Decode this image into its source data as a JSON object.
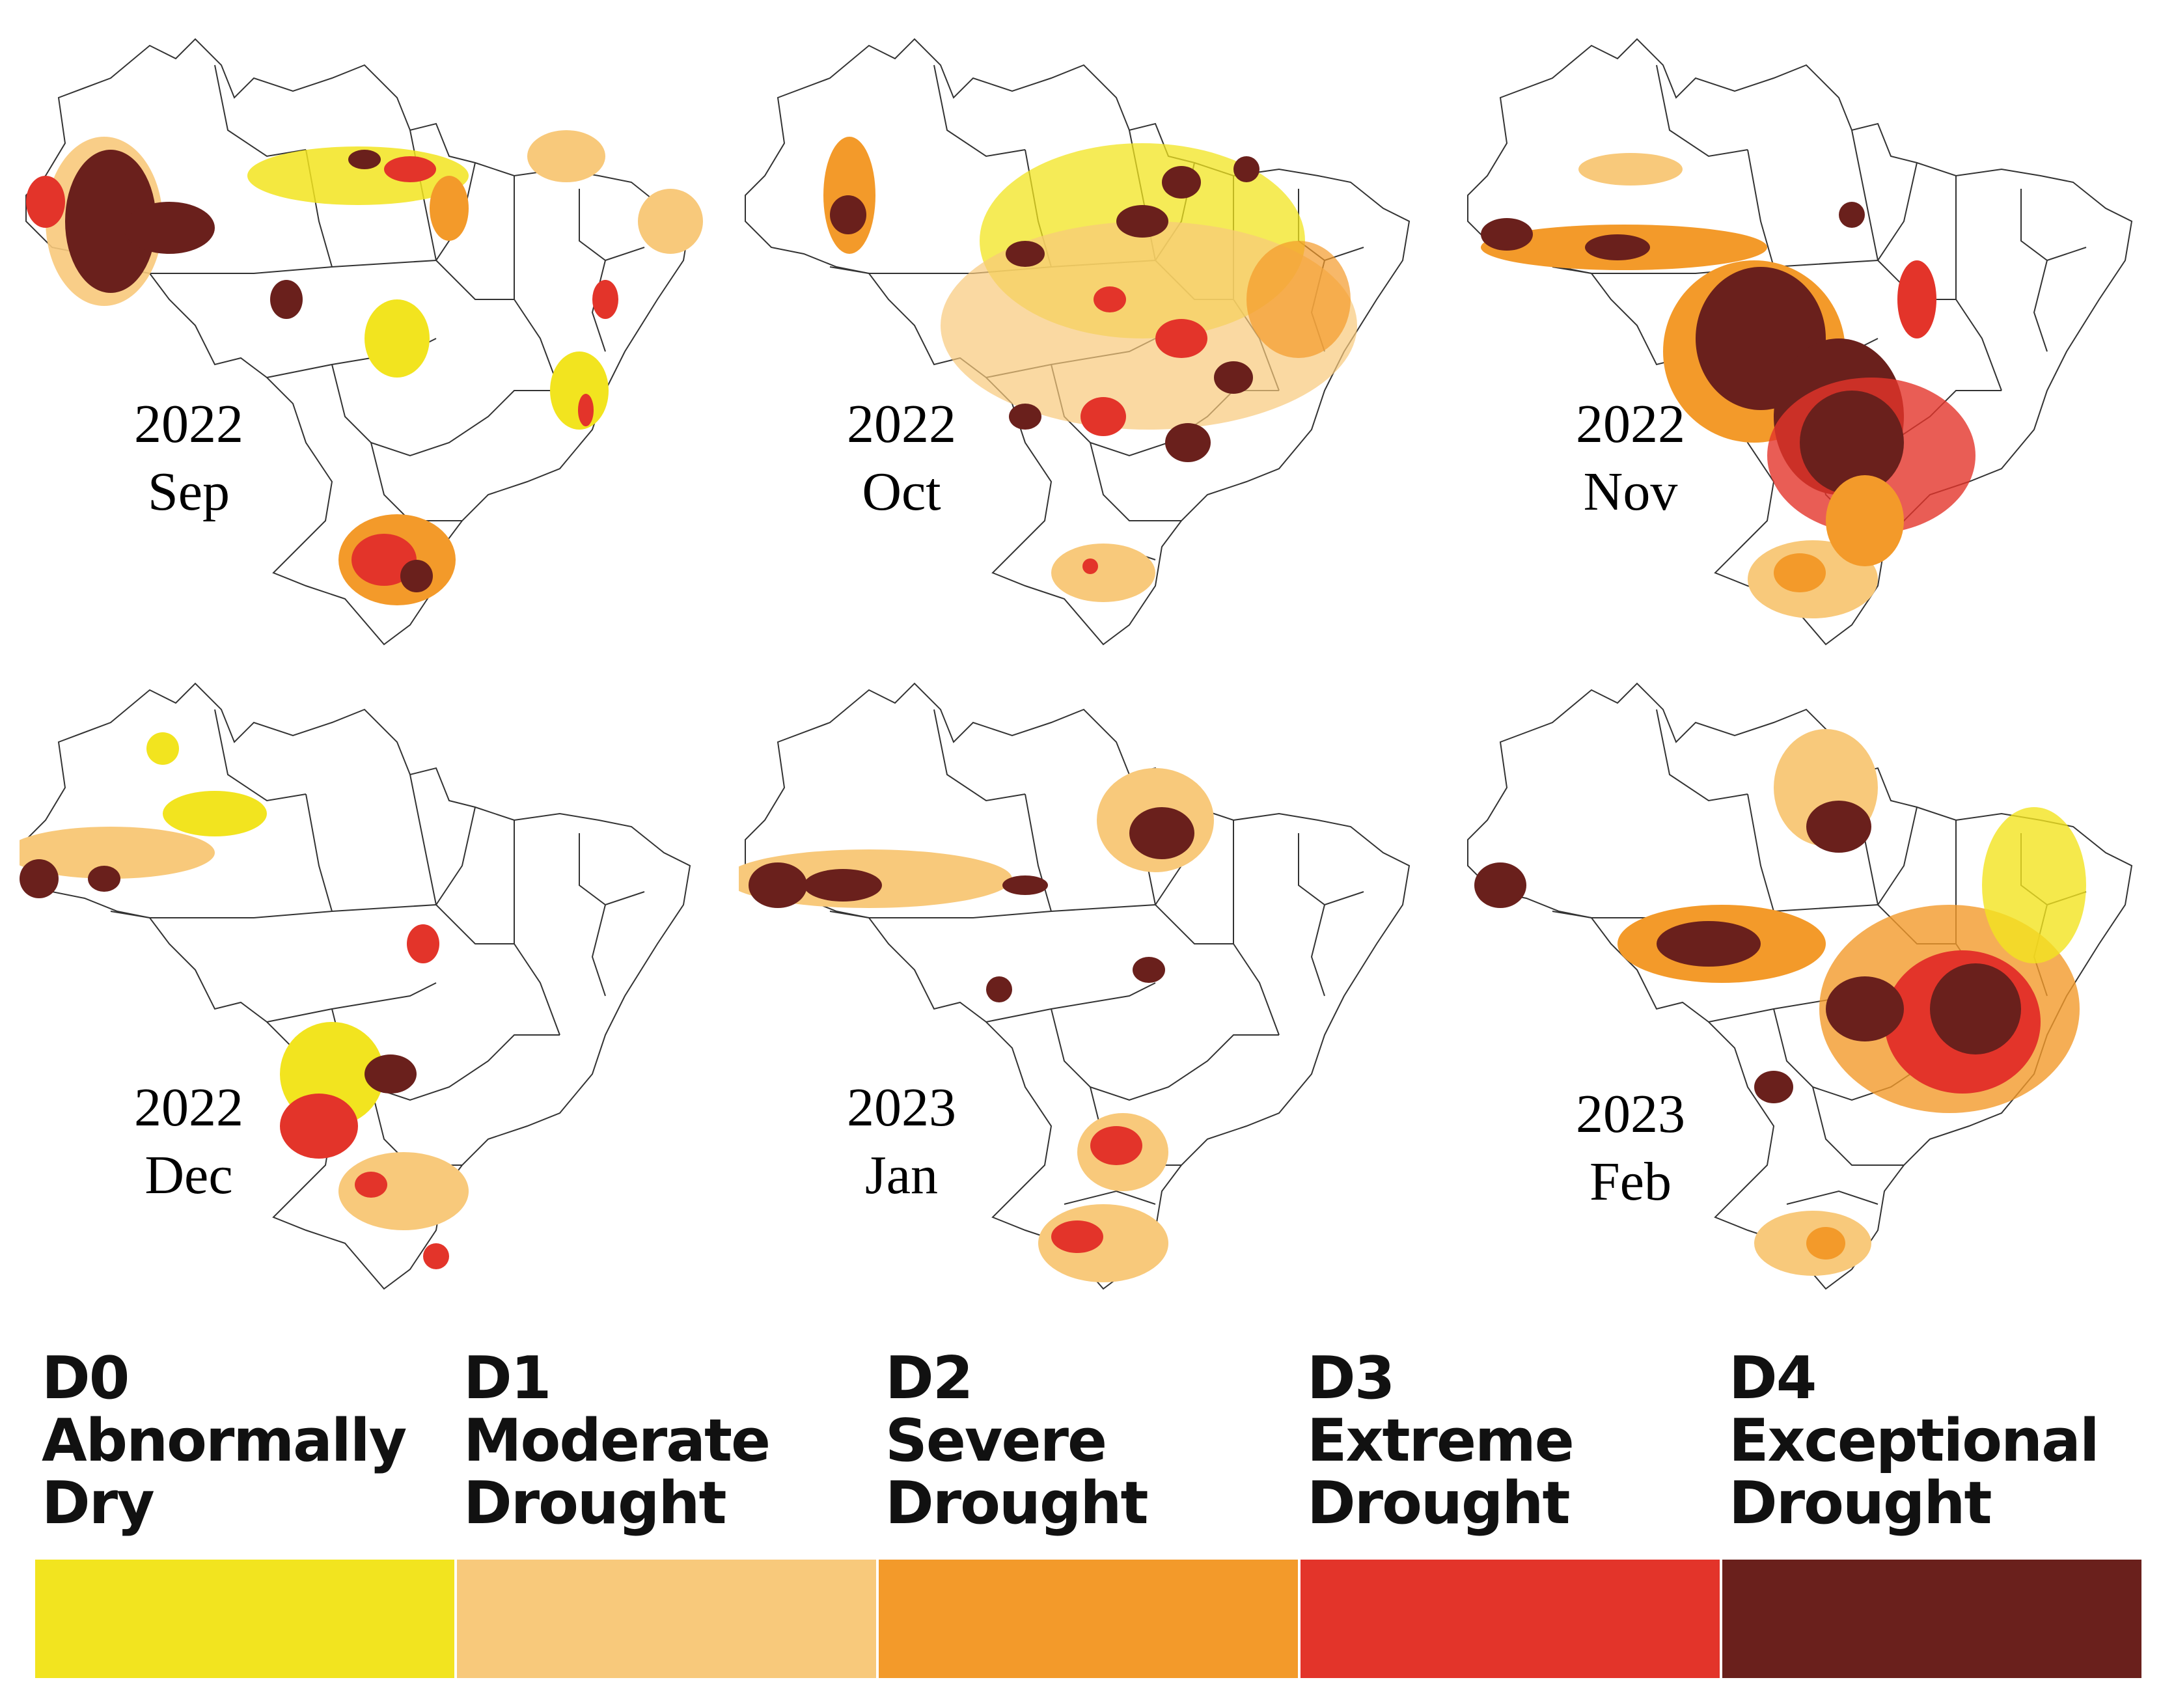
{
  "figure": {
    "panels": [
      {
        "year": "2022",
        "month": "Sep"
      },
      {
        "year": "2022",
        "month": "Oct"
      },
      {
        "year": "2022",
        "month": "Nov"
      },
      {
        "year": "2022",
        "month": "Dec"
      },
      {
        "year": "2023",
        "month": "Jan"
      },
      {
        "year": "2023",
        "month": "Feb"
      }
    ]
  },
  "legend": {
    "items": [
      {
        "code": "D0",
        "name": "Abnormally Dry",
        "color": "#f2e41f"
      },
      {
        "code": "D1",
        "name": "Moderate Drought",
        "color": "#f8c97b"
      },
      {
        "code": "D2",
        "name": "Severe Drought",
        "color": "#f39a2a"
      },
      {
        "code": "D3",
        "name": "Extreme Drought",
        "color": "#e3342a"
      },
      {
        "code": "D4",
        "name": "Exceptional Drought",
        "color": "#6a201c"
      }
    ]
  }
}
